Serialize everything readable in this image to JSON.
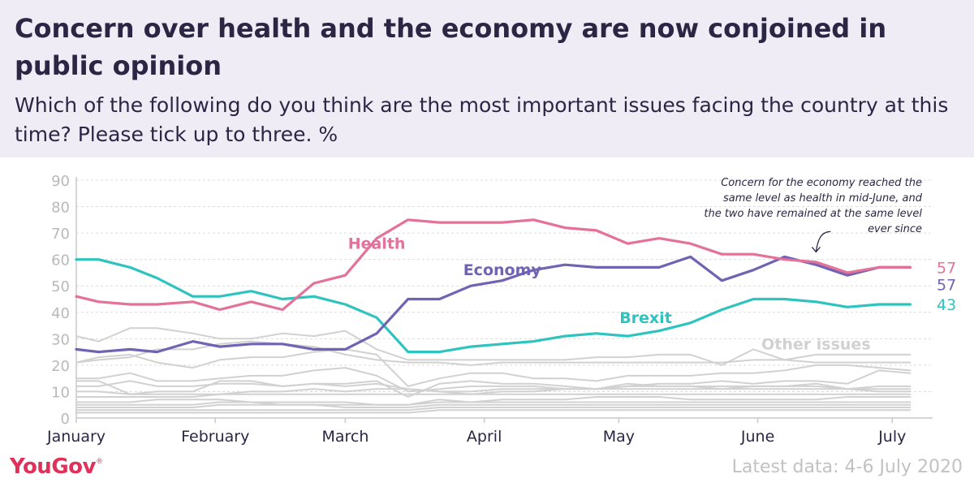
{
  "header": {
    "title": "Concern over health and the economy are now conjoined in public opinion",
    "subtitle": "Which of the following do you think are the most important issues facing the country at this time? Please tick up to three. %"
  },
  "footer": {
    "brand": "YouGov",
    "latest": "Latest data: 4-6 July 2020"
  },
  "chart_data": {
    "type": "line",
    "ylim": [
      0,
      90
    ],
    "yticks": [
      0,
      10,
      20,
      30,
      40,
      50,
      60,
      70,
      80,
      90
    ],
    "xlim": [
      "2020-01-01",
      "2020-07-10"
    ],
    "xticks": [
      {
        "label": "January",
        "date": "2020-01-01"
      },
      {
        "label": "February",
        "date": "2020-02-01"
      },
      {
        "label": "March",
        "date": "2020-03-01"
      },
      {
        "label": "April",
        "date": "2020-04-01"
      },
      {
        "label": "May",
        "date": "2020-05-01"
      },
      {
        "label": "June",
        "date": "2020-06-01"
      },
      {
        "label": "July",
        "date": "2020-07-01"
      }
    ],
    "grid": true,
    "colors": {
      "health": "#e3719a",
      "economy": "#7162b4",
      "brexit": "#2fc3bf",
      "other": "#d1d1d1",
      "axis": "#c8c8c8",
      "grid": "#dcdcdc"
    },
    "dates": [
      "2020-01-01",
      "2020-01-06",
      "2020-01-13",
      "2020-01-19",
      "2020-01-27",
      "2020-02-02",
      "2020-02-09",
      "2020-02-16",
      "2020-02-23",
      "2020-03-01",
      "2020-03-08",
      "2020-03-15",
      "2020-03-22",
      "2020-03-29",
      "2020-04-05",
      "2020-04-12",
      "2020-04-19",
      "2020-04-26",
      "2020-05-03",
      "2020-05-10",
      "2020-05-17",
      "2020-05-24",
      "2020-05-31",
      "2020-06-07",
      "2020-06-14",
      "2020-06-21",
      "2020-06-28",
      "2020-07-05"
    ],
    "series": [
      {
        "key": "health",
        "name": "Health",
        "values": [
          46,
          44,
          43,
          43,
          44,
          41,
          44,
          41,
          51,
          54,
          68,
          75,
          74,
          74,
          74,
          75,
          72,
          71,
          66,
          68,
          66,
          62,
          62,
          60,
          59,
          55,
          57,
          57
        ]
      },
      {
        "key": "economy",
        "name": "Economy",
        "values": [
          26,
          25,
          26,
          25,
          29,
          27,
          28,
          28,
          26,
          26,
          32,
          45,
          45,
          50,
          52,
          56,
          58,
          57,
          57,
          57,
          61,
          52,
          56,
          61,
          58,
          54,
          57,
          57
        ]
      },
      {
        "key": "brexit",
        "name": "Brexit",
        "values": [
          60,
          60,
          57,
          53,
          46,
          46,
          48,
          45,
          46,
          43,
          38,
          25,
          25,
          27,
          28,
          29,
          31,
          32,
          31,
          33,
          36,
          41,
          45,
          45,
          44,
          42,
          43,
          43
        ]
      }
    ],
    "other_series": [
      [
        31,
        29,
        34,
        34,
        32,
        30,
        30,
        32,
        31,
        33,
        26,
        22,
        22,
        22,
        22,
        22,
        22,
        23,
        23,
        24,
        24,
        20,
        26,
        22,
        24,
        24,
        24,
        24
      ],
      [
        21,
        22,
        23,
        26,
        26,
        28,
        29,
        28,
        27,
        24,
        22,
        21,
        21,
        20,
        21,
        21,
        21,
        21,
        21,
        21,
        21,
        21,
        22,
        22,
        21,
        21,
        21,
        21
      ],
      [
        21,
        23,
        24,
        21,
        19,
        22,
        23,
        23,
        25,
        26,
        24,
        12,
        15,
        17,
        17,
        15,
        15,
        14,
        16,
        16,
        16,
        17,
        17,
        18,
        20,
        20,
        19,
        18
      ],
      [
        14,
        14,
        9,
        10,
        10,
        14,
        14,
        12,
        13,
        13,
        14,
        8,
        13,
        14,
        13,
        13,
        12,
        11,
        12,
        13,
        13,
        14,
        13,
        14,
        14,
        13,
        18,
        17
      ],
      [
        15,
        15,
        17,
        14,
        14,
        15,
        16,
        16,
        18,
        19,
        16,
        10,
        11,
        12,
        12,
        12,
        11,
        11,
        12,
        12,
        12,
        12,
        12,
        12,
        12,
        11,
        12,
        12
      ],
      [
        12,
        12,
        14,
        12,
        12,
        13,
        13,
        12,
        13,
        12,
        13,
        11,
        10,
        10,
        11,
        11,
        11,
        11,
        11,
        11,
        11,
        11,
        11,
        11,
        11,
        11,
        11,
        11
      ],
      [
        8,
        8,
        8,
        8,
        8,
        9,
        10,
        10,
        11,
        10,
        11,
        11,
        10,
        9,
        10,
        10,
        11,
        11,
        13,
        12,
        12,
        11,
        12,
        12,
        13,
        11,
        10,
        10
      ],
      [
        10,
        10,
        9,
        9,
        9,
        9,
        9,
        9,
        9,
        9,
        9,
        9,
        9,
        9,
        9,
        9,
        9,
        9,
        9,
        9,
        9,
        9,
        9,
        9,
        9,
        9,
        9,
        9
      ],
      [
        6,
        6,
        6,
        7,
        7,
        7,
        6,
        6,
        6,
        6,
        5,
        5,
        7,
        6,
        7,
        7,
        7,
        8,
        8,
        8,
        7,
        7,
        7,
        7,
        7,
        8,
        8,
        8
      ],
      [
        5,
        5,
        5,
        5,
        5,
        6,
        6,
        5,
        5,
        5,
        5,
        5,
        6,
        6,
        6,
        6,
        6,
        6,
        6,
        6,
        6,
        6,
        6,
        6,
        6,
        6,
        6,
        6
      ],
      [
        4,
        4,
        4,
        4,
        4,
        5,
        5,
        5,
        5,
        4,
        4,
        4,
        5,
        5,
        5,
        5,
        5,
        5,
        5,
        5,
        5,
        5,
        5,
        5,
        5,
        5,
        5,
        5
      ],
      [
        3,
        3,
        3,
        3,
        3,
        3,
        3,
        3,
        3,
        3,
        3,
        3,
        4,
        4,
        4,
        4,
        4,
        4,
        4,
        4,
        4,
        4,
        4,
        4,
        4,
        4,
        4,
        4
      ],
      [
        2,
        2,
        2,
        2,
        2,
        2,
        2,
        2,
        2,
        2,
        2,
        2,
        3,
        3,
        3,
        3,
        3,
        3,
        3,
        3,
        3,
        3,
        3,
        3,
        3,
        3,
        3,
        3
      ]
    ],
    "labels": [
      {
        "key": "health",
        "text": "Health",
        "date": "2020-03-08",
        "value": 64
      },
      {
        "key": "economy",
        "text": "Economy",
        "date": "2020-04-05",
        "value": 54
      },
      {
        "key": "brexit",
        "text": "Brexit",
        "date": "2020-05-07",
        "value": 36
      },
      {
        "key": "other",
        "text": "Other issues",
        "date": "2020-06-14",
        "value": 26
      }
    ],
    "end_labels": [
      {
        "key": "health",
        "text": "57",
        "value": 57
      },
      {
        "key": "economy",
        "text": "57",
        "value": 57
      },
      {
        "key": "brexit",
        "text": "43",
        "value": 43
      }
    ],
    "annotation": {
      "lines": [
        "Concern for the economy reached the",
        "same level as health in mid-June, and",
        "the two have remained at the same level",
        "ever since"
      ],
      "target_date": "2020-06-14",
      "target_value": 61
    }
  }
}
